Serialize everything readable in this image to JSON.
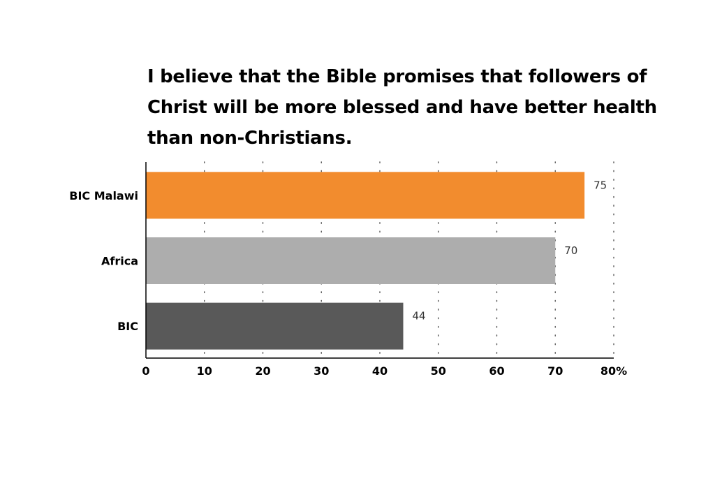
{
  "chart_data": {
    "type": "bar",
    "orientation": "horizontal",
    "title": "I believe that the Bible promises that followers of Christ will be more blessed and have better health than non-Christians.",
    "categories": [
      "BIC Malawi",
      "Africa",
      "BIC"
    ],
    "values": [
      75,
      70,
      44
    ],
    "colors": [
      "#F28C2E",
      "#ADADAD",
      "#595959"
    ],
    "xlim": [
      0,
      80
    ],
    "xticks": [
      0,
      10,
      20,
      30,
      40,
      50,
      60,
      70,
      80
    ],
    "xtick_labels": [
      "0",
      "10",
      "20",
      "30",
      "40",
      "50",
      "60",
      "70",
      "80%"
    ],
    "grid": "vertical-dotted",
    "legend": "none"
  }
}
